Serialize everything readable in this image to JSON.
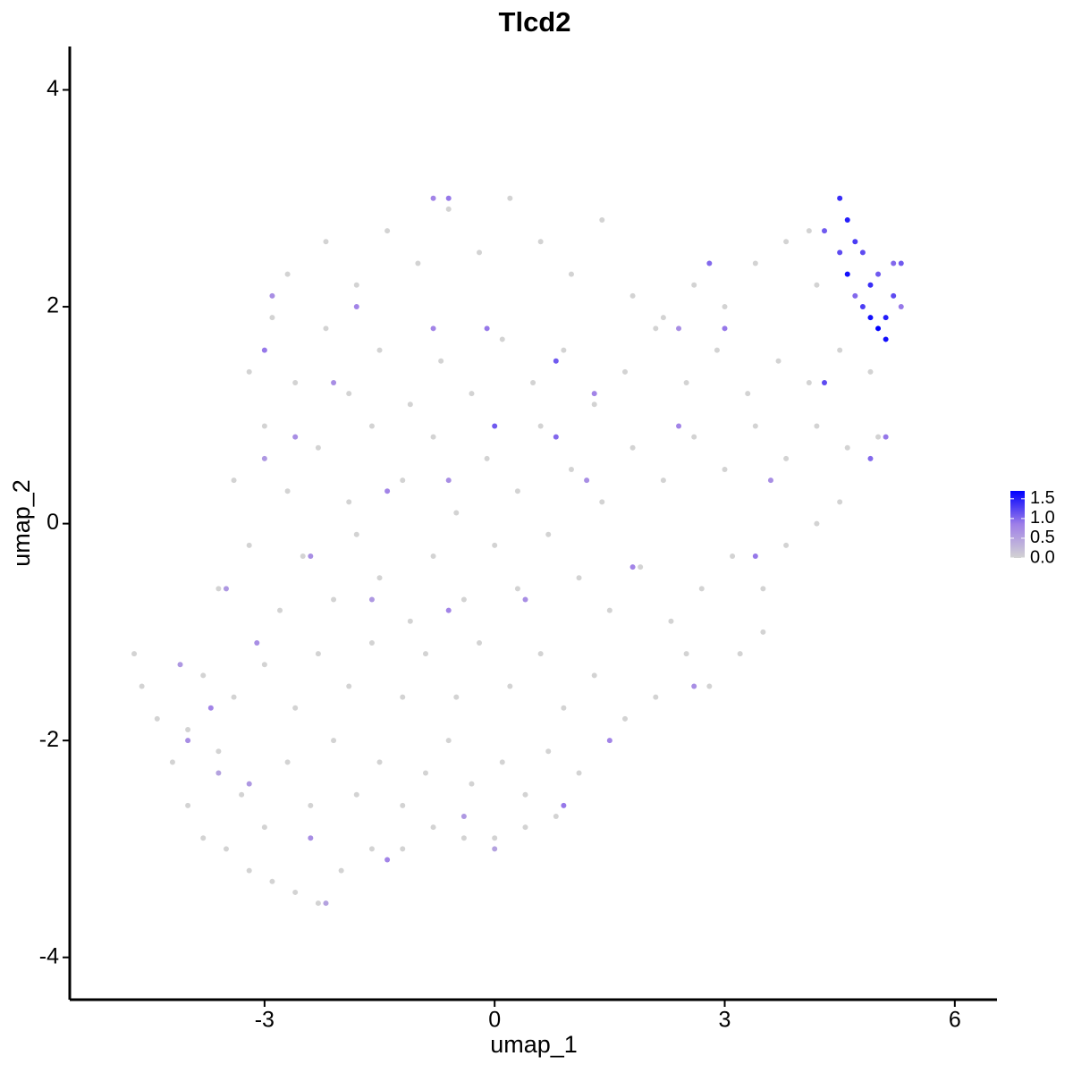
{
  "chart_data": {
    "type": "scatter",
    "title": "Tlcd2",
    "x_label": "umap_1",
    "y_label": "umap_2",
    "xlim": [
      -5.54,
      6.55
    ],
    "ylim": [
      -4.39,
      4.4
    ],
    "xticks": [
      -3,
      0,
      3,
      6
    ],
    "yticks": [
      -4,
      -2,
      0,
      2,
      4
    ],
    "color_scale": [
      "#d3d3d3",
      "#9f7fe8",
      "#0000ff"
    ],
    "clim": [
      0,
      1.7
    ],
    "cticks": [
      {
        "value": 0,
        "label": "0.0"
      },
      {
        "value": 0.5,
        "label": "0.5"
      },
      {
        "value": 1,
        "label": "1.0"
      },
      {
        "value": 1.5,
        "label": "1.5"
      }
    ],
    "x": [
      -4.7,
      -4.6,
      -4.4,
      -4.2,
      -4.0,
      -3.8,
      -3.5,
      -3.2,
      -2.9,
      -2.6,
      -2.3,
      -2.0,
      -1.6,
      -1.2,
      -0.8,
      -0.4,
      0.0,
      0.4,
      0.8,
      -4.0,
      -3.6,
      -3.3,
      -3.0,
      -2.7,
      -2.4,
      -2.1,
      -1.8,
      -1.5,
      -1.2,
      -0.9,
      -0.6,
      -0.3,
      0.1,
      0.4,
      0.7,
      1.1,
      -3.8,
      -3.4,
      -3.0,
      -2.6,
      -2.3,
      -1.9,
      -1.6,
      -1.2,
      -0.9,
      -0.5,
      -0.2,
      0.2,
      0.6,
      0.9,
      1.3,
      1.7,
      2.1,
      2.5,
      2.8,
      3.2,
      3.5,
      -3.6,
      -3.2,
      -2.8,
      -2.5,
      -2.1,
      -1.8,
      -1.5,
      -1.1,
      -0.8,
      -0.4,
      0.0,
      0.3,
      0.7,
      1.1,
      1.5,
      1.9,
      2.3,
      2.7,
      3.1,
      3.5,
      3.8,
      4.2,
      4.5,
      -3.4,
      -3.0,
      -2.7,
      -2.3,
      -1.9,
      -1.6,
      -1.2,
      -0.8,
      -0.5,
      -0.1,
      0.3,
      0.6,
      1.0,
      1.4,
      1.8,
      2.2,
      2.6,
      3.0,
      3.4,
      3.8,
      4.2,
      4.6,
      5.0,
      -3.2,
      -2.9,
      -2.6,
      -2.2,
      -1.9,
      -1.5,
      -1.1,
      -0.7,
      -0.3,
      0.1,
      0.5,
      0.9,
      1.3,
      1.7,
      2.1,
      2.5,
      2.9,
      3.3,
      3.7,
      4.1,
      4.5,
      4.9,
      -2.7,
      -2.2,
      -1.8,
      -1.4,
      -1.0,
      -0.6,
      -0.2,
      0.2,
      0.6,
      1.0,
      1.4,
      1.8,
      2.2,
      2.6,
      3.0,
      3.4,
      3.8,
      4.2,
      4.1,
      -4.1,
      -3.7,
      -4.0,
      -3.6,
      -3.2,
      -2.4,
      -2.2,
      -1.4,
      -0.4,
      0.0,
      0.9,
      1.5,
      2.6,
      -3.5,
      -3.1,
      -2.4,
      -1.6,
      -0.6,
      0.4,
      1.8,
      3.4,
      -3.0,
      -2.6,
      -1.4,
      -0.6,
      0.0,
      0.8,
      1.2,
      2.4,
      3.6,
      4.9,
      5.1,
      -3.0,
      -2.1,
      -0.8,
      -0.1,
      0.8,
      1.3,
      2.4,
      3.0,
      4.3,
      -2.9,
      -1.8,
      -0.8,
      -0.6,
      2.8,
      4.3,
      4.5,
      4.6,
      4.7,
      4.6,
      4.8,
      4.9,
      5.0,
      5.2,
      5.3,
      4.9,
      5.0,
      5.1,
      4.8,
      5.2,
      5.1,
      4.7,
      5.3,
      4.5
    ],
    "y": [
      -1.2,
      -1.5,
      -1.8,
      -2.2,
      -2.6,
      -2.9,
      -3.0,
      -3.2,
      -3.3,
      -3.4,
      -3.5,
      -3.2,
      -3.0,
      -3.0,
      -2.8,
      -2.9,
      -2.9,
      -2.8,
      -2.7,
      -1.9,
      -2.1,
      -2.5,
      -2.8,
      -2.2,
      -2.6,
      -2.0,
      -2.5,
      -2.2,
      -2.6,
      -2.3,
      -2.0,
      -2.4,
      -2.2,
      -2.5,
      -2.1,
      -2.3,
      -1.4,
      -1.6,
      -1.3,
      -1.7,
      -1.2,
      -1.5,
      -1.1,
      -1.6,
      -1.2,
      -1.6,
      -1.1,
      -1.5,
      -1.2,
      -1.7,
      -1.4,
      -1.8,
      -1.6,
      -1.2,
      -1.5,
      -1.2,
      -1.0,
      -0.6,
      -0.2,
      -0.8,
      -0.3,
      -0.7,
      -0.1,
      -0.5,
      -0.9,
      -0.3,
      -0.7,
      -0.2,
      -0.6,
      -0.1,
      -0.5,
      -0.8,
      -0.4,
      -0.9,
      -0.6,
      -0.3,
      -0.6,
      -0.2,
      0.0,
      0.2,
      0.4,
      0.9,
      0.3,
      0.7,
      0.2,
      0.9,
      0.4,
      0.8,
      0.1,
      0.6,
      0.3,
      0.9,
      0.5,
      0.2,
      0.7,
      0.4,
      0.8,
      0.5,
      0.9,
      0.6,
      0.9,
      0.7,
      0.8,
      1.4,
      1.9,
      1.3,
      1.8,
      1.2,
      1.6,
      1.1,
      1.5,
      1.2,
      1.7,
      1.3,
      1.6,
      1.1,
      1.4,
      1.8,
      1.3,
      1.6,
      1.2,
      1.5,
      1.3,
      1.6,
      1.4,
      2.3,
      2.6,
      2.2,
      2.7,
      2.4,
      2.9,
      2.5,
      3.0,
      2.6,
      2.3,
      2.8,
      2.1,
      1.9,
      2.2,
      2.0,
      2.4,
      2.6,
      2.2,
      2.7,
      -1.3,
      -1.7,
      -2.0,
      -2.3,
      -2.4,
      -2.9,
      -3.5,
      -3.1,
      -2.7,
      -3.0,
      -2.6,
      -2.0,
      -1.5,
      -0.6,
      -1.1,
      -0.3,
      -0.7,
      -0.8,
      -0.7,
      -0.4,
      -0.3,
      0.6,
      0.8,
      0.3,
      0.4,
      0.9,
      0.8,
      0.4,
      0.9,
      0.4,
      0.6,
      0.8,
      1.6,
      1.3,
      1.8,
      1.8,
      1.5,
      1.2,
      1.8,
      1.8,
      1.3,
      2.1,
      2.0,
      3.0,
      3.0,
      2.4,
      2.7,
      3.0,
      2.8,
      2.6,
      2.3,
      2.5,
      2.2,
      2.3,
      2.4,
      2.0,
      1.9,
      1.8,
      1.9,
      2.0,
      2.1,
      1.7,
      2.1,
      2.4,
      2.5
    ],
    "values": [
      0,
      0,
      0,
      0,
      0,
      0,
      0,
      0,
      0,
      0,
      0,
      0,
      0,
      0,
      0,
      0,
      0,
      0,
      0,
      0,
      0,
      0,
      0,
      0,
      0,
      0,
      0,
      0,
      0,
      0,
      0,
      0,
      0,
      0,
      0,
      0,
      0,
      0,
      0,
      0,
      0,
      0,
      0,
      0,
      0,
      0,
      0,
      0,
      0,
      0,
      0,
      0,
      0,
      0,
      0,
      0,
      0,
      0,
      0,
      0,
      0,
      0,
      0,
      0,
      0,
      0,
      0,
      0,
      0,
      0,
      0,
      0,
      0,
      0,
      0,
      0,
      0,
      0,
      0,
      0,
      0,
      0,
      0,
      0,
      0,
      0,
      0,
      0,
      0,
      0,
      0,
      0,
      0,
      0,
      0,
      0,
      0,
      0,
      0,
      0,
      0,
      0,
      0,
      0,
      0,
      0,
      0,
      0,
      0,
      0,
      0,
      0,
      0,
      0,
      0,
      0,
      0,
      0,
      0,
      0,
      0,
      0,
      0,
      0,
      0,
      0,
      0,
      0,
      0,
      0,
      0,
      0,
      0,
      0,
      0,
      0,
      0,
      0,
      0,
      0,
      0,
      0,
      0,
      0,
      0.6,
      0.8,
      0.7,
      0.5,
      0.6,
      0.7,
      0.5,
      0.8,
      0.6,
      0.5,
      0.9,
      0.8,
      0.7,
      0.6,
      0.7,
      0.7,
      0.6,
      0.8,
      0.7,
      0.8,
      0.9,
      0.6,
      0.7,
      0.8,
      0.7,
      1.1,
      1.0,
      0.7,
      0.8,
      0.7,
      1.0,
      0.9,
      0.9,
      0.7,
      0.8,
      0.9,
      1.1,
      0.8,
      0.7,
      0.9,
      1.2,
      0.7,
      0.8,
      0.8,
      0.9,
      1.0,
      1.1,
      1.4,
      1.5,
      1.3,
      1.6,
      1.2,
      1.4,
      1.1,
      1.0,
      0.9,
      1.6,
      1.7,
      1.5,
      1.3,
      1.2,
      1.6,
      1.0,
      1.1,
      1.2
    ]
  }
}
